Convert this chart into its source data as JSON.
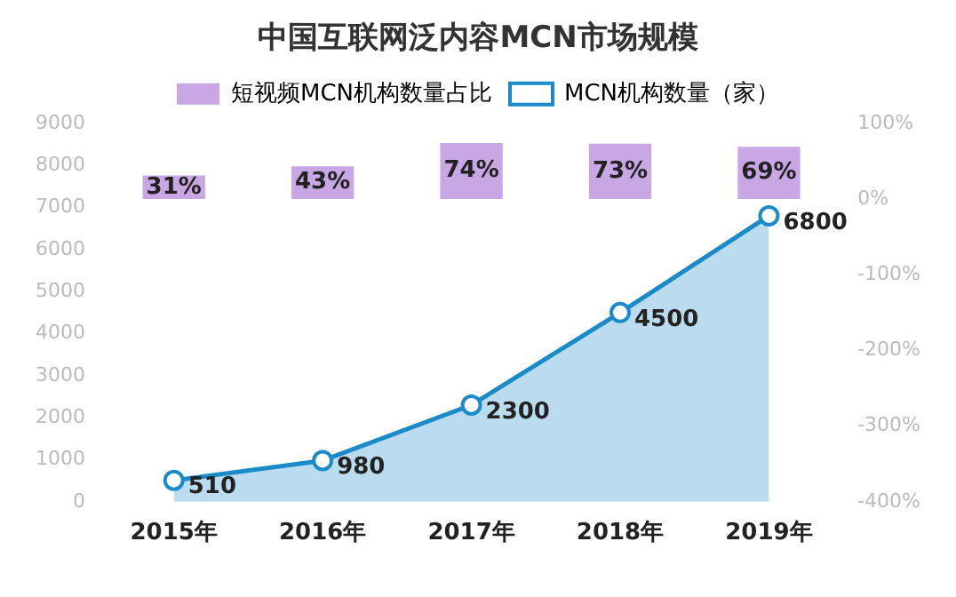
{
  "chart_data": {
    "type": "bar",
    "title": "中国互联网泛内容MCN市场规模",
    "categories": [
      "2015年",
      "2016年",
      "2017年",
      "2018年",
      "2019年"
    ],
    "series": [
      {
        "name": "短视频MCN机构数量占比",
        "axis": "y2",
        "color": "#c9a6e4",
        "values": [
          31,
          43,
          74,
          73,
          69
        ],
        "value_labels": [
          "31%",
          "43%",
          "74%",
          "73%",
          "69%"
        ]
      },
      {
        "name": "MCN机构数量（家）",
        "type": "area",
        "axis": "y",
        "color": "#1a8bc8",
        "values": [
          510,
          980,
          2300,
          4500,
          6800
        ],
        "value_labels": [
          "510",
          "980",
          "2300",
          "4500",
          "6800"
        ]
      }
    ],
    "ylim": [
      0,
      9000
    ],
    "yticks": [
      0,
      1000,
      2000,
      3000,
      4000,
      5000,
      6000,
      7000,
      8000,
      9000
    ],
    "y2lim": [
      -400,
      100
    ],
    "y2ticks": [
      {
        "value": -400,
        "label": "-400%"
      },
      {
        "value": -300,
        "label": "-300%"
      },
      {
        "value": -200,
        "label": "-200%"
      },
      {
        "value": -100,
        "label": "-100%"
      },
      {
        "value": 0,
        "label": "0%"
      },
      {
        "value": 100,
        "label": "100%"
      }
    ],
    "grid": false,
    "legend": "top",
    "marker": "circle"
  }
}
